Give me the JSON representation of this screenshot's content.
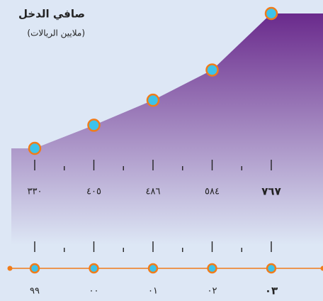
{
  "chart_data": {
    "type": "area",
    "title": "صافي الدخل",
    "subtitle": "(ملايين الريالات)",
    "categories": [
      "٩٩",
      "٠٠",
      "٠١",
      "٠٢",
      "٠٣"
    ],
    "values": [
      330,
      405,
      486,
      584,
      767
    ],
    "value_labels": [
      "٣٣٠",
      "٤٠٥",
      "٤٨٦",
      "٥٨٤",
      "٧٦٧"
    ],
    "color": "#6a2a8c",
    "marker_color": "#3cc3ea",
    "marker_edge": "#f07c1a"
  }
}
